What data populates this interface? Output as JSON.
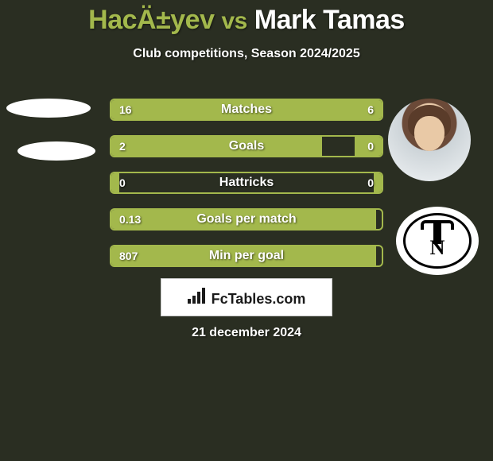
{
  "title": {
    "player1": "HacÄ±yev",
    "vs": "vs",
    "player2": "Mark Tamas"
  },
  "subtitle": "Club competitions, Season 2024/2025",
  "brand": "FcTables.com",
  "date": "21 december 2024",
  "colors": {
    "bg": "#2a2e22",
    "accent": "#a3b84c",
    "text": "#ffffff",
    "brand_box_bg": "#ffffff",
    "brand_text": "#1a1a1a"
  },
  "stats": [
    {
      "label": "Matches",
      "left_val": "16",
      "right_val": "6",
      "left_pct": 70,
      "right_pct": 30
    },
    {
      "label": "Goals",
      "left_val": "2",
      "right_val": "0",
      "left_pct": 78,
      "right_pct": 10
    },
    {
      "label": "Hattricks",
      "left_val": "0",
      "right_val": "0",
      "left_pct": 3,
      "right_pct": 3
    },
    {
      "label": "Goals per match",
      "left_val": "0.13",
      "right_val": "",
      "left_pct": 98,
      "right_pct": 0
    },
    {
      "label": "Min per goal",
      "left_val": "807",
      "right_val": "",
      "left_pct": 98,
      "right_pct": 0
    }
  ],
  "right_logo_letter": "N"
}
